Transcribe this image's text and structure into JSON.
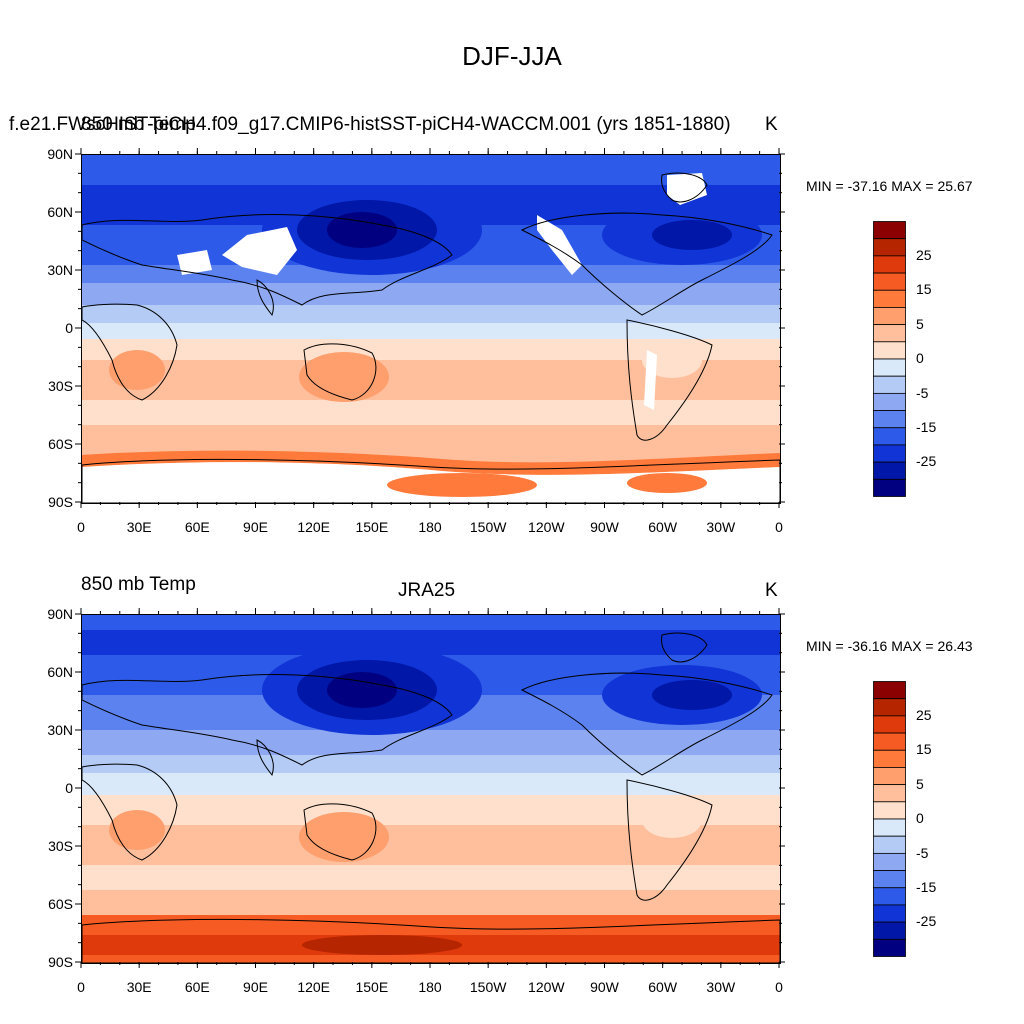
{
  "figure_title": "DJF-JJA",
  "panels": [
    {
      "left_label": "850 mb Temp",
      "overlapped_label": "f.e21.FWscHIST-piCH4.f09_g17.CMIP6-histSST-piCH4-WACCM.001 (yrs 1851-1880)",
      "center_label": "",
      "right_label": "K",
      "minmax_text": "MIN = -37.16 MAX =  25.67",
      "has_missing_areas": true
    },
    {
      "left_label": "850 mb Temp",
      "overlapped_label": "",
      "center_label": "JRA25",
      "right_label": "K",
      "minmax_text": "MIN = -36.16 MAX =  26.43",
      "has_missing_areas": false
    }
  ],
  "lat_ticks": [
    "90N",
    "60N",
    "30N",
    "0",
    "30S",
    "60S",
    "90S"
  ],
  "lon_ticks": [
    "0",
    "30E",
    "60E",
    "90E",
    "120E",
    "150E",
    "180",
    "150W",
    "120W",
    "90W",
    "60W",
    "30W",
    "0"
  ],
  "colorbar": {
    "labels": [
      "25",
      "15",
      "5",
      "0",
      "-5",
      "-15",
      "-25"
    ],
    "colors": [
      "#8b0000",
      "#b52500",
      "#df3a0b",
      "#f55b22",
      "#ff7a3b",
      "#ff9f6e",
      "#ffbf9c",
      "#ffe0cc",
      "#d9e9fa",
      "#b3cbf5",
      "#8ea8f2",
      "#5b82ef",
      "#2d5ae8",
      "#1034d5",
      "#0017a7",
      "#000080"
    ]
  }
}
